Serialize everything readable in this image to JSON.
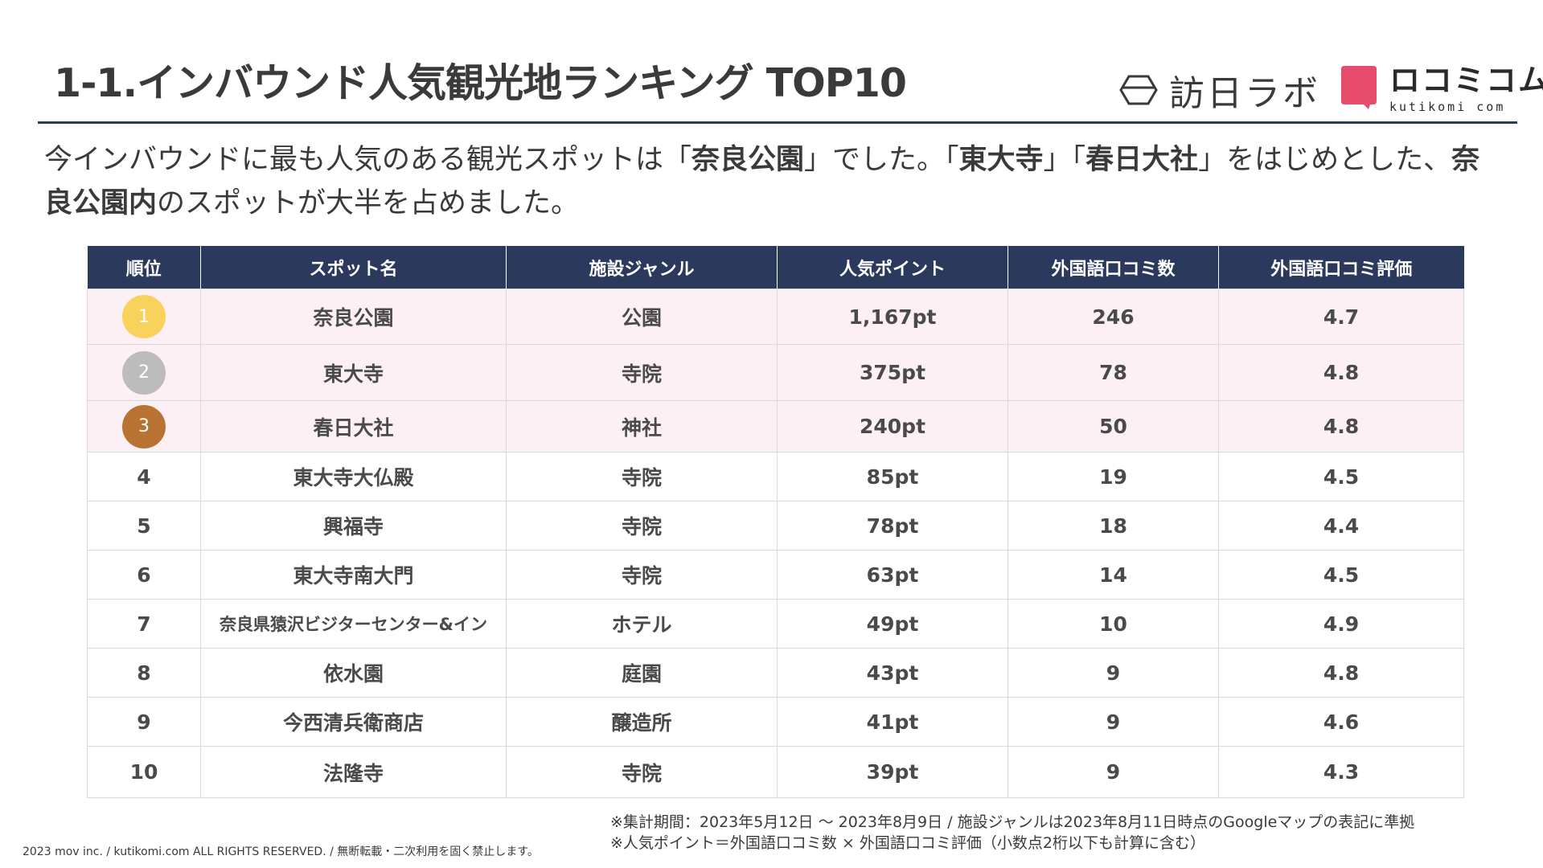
{
  "header": {
    "title": "1-1.インバウンド人気観光地ランキング TOP10",
    "logo_houjitsu": "訪日ラボ",
    "logo_kutikomi_jp": "ロコミコム",
    "logo_kutikomi_en": "kutikomi com"
  },
  "lead": {
    "p1": "今インバウンドに最も人気のある観光スポットは「",
    "b1": "奈良公園",
    "p2": "」でした。「",
    "b2": "東大寺",
    "p3": "」「",
    "b3": "春日大社",
    "p4": "」をはじめとした、",
    "b4": "奈良公園内",
    "p5": "のスポットが大半を占めました。"
  },
  "table": {
    "headers": [
      "順位",
      "スポット名",
      "施設ジャンル",
      "人気ポイント",
      "外国語口コミ数",
      "外国語口コミ評価"
    ],
    "rows": [
      {
        "rank": "1",
        "name": "奈良公園",
        "genre": "公園",
        "points": "1,167pt",
        "reviews": "246",
        "rating": "4.7"
      },
      {
        "rank": "2",
        "name": "東大寺",
        "genre": "寺院",
        "points": "375pt",
        "reviews": "78",
        "rating": "4.8"
      },
      {
        "rank": "3",
        "name": "春日大社",
        "genre": "神社",
        "points": "240pt",
        "reviews": "50",
        "rating": "4.8"
      },
      {
        "rank": "4",
        "name": "東大寺大仏殿",
        "genre": "寺院",
        "points": "85pt",
        "reviews": "19",
        "rating": "4.5"
      },
      {
        "rank": "5",
        "name": "興福寺",
        "genre": "寺院",
        "points": "78pt",
        "reviews": "18",
        "rating": "4.4"
      },
      {
        "rank": "6",
        "name": "東大寺南大門",
        "genre": "寺院",
        "points": "63pt",
        "reviews": "14",
        "rating": "4.5"
      },
      {
        "rank": "7",
        "name": "奈良県猿沢ビジターセンター&イン",
        "genre": "ホテル",
        "points": "49pt",
        "reviews": "10",
        "rating": "4.9"
      },
      {
        "rank": "8",
        "name": "依水園",
        "genre": "庭園",
        "points": "43pt",
        "reviews": "9",
        "rating": "4.8"
      },
      {
        "rank": "9",
        "name": "今西清兵衛商店",
        "genre": "醸造所",
        "points": "41pt",
        "reviews": "9",
        "rating": "4.6"
      },
      {
        "rank": "10",
        "name": "法隆寺",
        "genre": "寺院",
        "points": "39pt",
        "reviews": "9",
        "rating": "4.3"
      }
    ]
  },
  "colors": {
    "header_bg": "#2b3a5c",
    "highlight_row": "#fdf0f4",
    "gold": "#f8d25a",
    "silver": "#bcbcbc",
    "bronze": "#b87333",
    "kutikomi_pink": "#e84c6d"
  },
  "notes": {
    "line1": "※集計期間：2023年5月12日 ～ 2023年8月9日 / 施設ジャンルは2023年8月11日時点のGoogleマップの表記に準拠",
    "line2": "※人気ポイント＝外国語口コミ数 × 外国語口コミ評価（小数点2桁以下も計算に含む）"
  },
  "footer": {
    "copyright": "2023 mov inc. / kutikomi.com ALL RIGHTS RESERVED. / 無断転載・二次利用を固く禁止します。"
  }
}
